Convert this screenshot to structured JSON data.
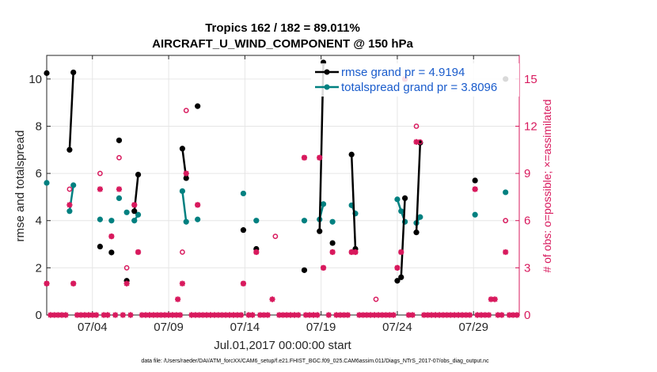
{
  "chart_data": {
    "type": "line",
    "title_line1": "Tropics 162 / 182 = 89.011%",
    "title_line2": "AIRCRAFT_U_WIND_COMPONENT @ 150 hPa",
    "xlabel": "Jul.01,2017 00:00:00 start",
    "ylabel_left": "rmse and totalspread",
    "ylabel_right": "# of obs: o=possible; ×=assimilated",
    "footer": "data file: /Users/raeder/DAI/ATM_forcXX/CAM6_setup/f.e21.FHIST_BGC.f09_025.CAM6assim.011/Diags_NTrS_2017-07/obs_diag_output.nc",
    "xlim": [
      1,
      32
    ],
    "ylim_left": [
      0,
      11
    ],
    "ylim_right": [
      0,
      16.5
    ],
    "x_ticks": [
      4,
      9,
      14,
      19,
      24,
      29
    ],
    "x_tick_labels": [
      "07/04",
      "07/09",
      "07/14",
      "07/19",
      "07/24",
      "07/29"
    ],
    "y_ticks_left": [
      0,
      2,
      4,
      6,
      8,
      10
    ],
    "y_tick_labels_left": [
      "0",
      "2",
      "4",
      "6",
      "8",
      "10"
    ],
    "y_ticks_right": [
      0,
      3,
      6,
      9,
      12,
      15
    ],
    "y_tick_labels_right": [
      "0",
      "3",
      "6",
      "9",
      "12",
      "15"
    ],
    "colors": {
      "rmse": "#000000",
      "spread": "#008080",
      "obs": "#d8195d",
      "grid": "#e6e6e6"
    },
    "legend": {
      "placement": "top-right",
      "rmse": "rmse grand pr = 4.9194",
      "spread": "totalspread grand pr = 3.8096"
    },
    "rmse": [
      [
        [
          1.0,
          10.25
        ]
      ],
      [
        [
          2.5,
          7.0
        ],
        [
          2.75,
          10.28
        ]
      ],
      [
        [
          4.5,
          2.9
        ]
      ],
      [
        [
          5.25,
          2.65
        ]
      ],
      [
        [
          5.75,
          7.4
        ]
      ],
      [
        [
          6.25,
          1.45
        ]
      ],
      [
        [
          6.75,
          4.4
        ],
        [
          7.0,
          5.95
        ]
      ],
      [
        [
          9.9,
          7.05
        ],
        [
          10.15,
          5.8
        ]
      ],
      [
        [
          10.9,
          8.85
        ]
      ],
      [
        [
          13.9,
          3.6
        ]
      ],
      [
        [
          14.75,
          2.8
        ]
      ],
      [
        [
          17.9,
          1.9
        ]
      ],
      [
        [
          18.9,
          3.55
        ],
        [
          19.15,
          10.7
        ]
      ],
      [
        [
          19.75,
          3.05
        ]
      ],
      [
        [
          21.0,
          6.8
        ],
        [
          21.25,
          2.8
        ]
      ],
      [
        [
          24.0,
          1.45
        ],
        [
          24.25,
          1.6
        ],
        [
          24.5,
          4.95
        ]
      ],
      [
        [
          25.25,
          3.5
        ],
        [
          25.5,
          7.3
        ]
      ],
      [
        [
          29.1,
          5.7
        ]
      ],
      [
        [
          31.1,
          10.0
        ]
      ]
    ],
    "spread": [
      [
        [
          1.0,
          5.6
        ]
      ],
      [
        [
          2.5,
          4.4
        ],
        [
          2.75,
          5.5
        ]
      ],
      [
        [
          4.5,
          4.05
        ]
      ],
      [
        [
          5.25,
          4.0
        ]
      ],
      [
        [
          5.75,
          4.95
        ]
      ],
      [
        [
          6.25,
          4.35
        ]
      ],
      [
        [
          6.75,
          4.0
        ],
        [
          7.0,
          4.25
        ]
      ],
      [
        [
          9.9,
          5.25
        ],
        [
          10.15,
          3.95
        ]
      ],
      [
        [
          10.9,
          4.05
        ]
      ],
      [
        [
          13.9,
          5.15
        ]
      ],
      [
        [
          14.75,
          4.0
        ]
      ],
      [
        [
          17.9,
          4.0
        ]
      ],
      [
        [
          18.9,
          4.05
        ],
        [
          19.15,
          4.7
        ]
      ],
      [
        [
          19.75,
          3.95
        ]
      ],
      [
        [
          21.0,
          4.65
        ],
        [
          21.25,
          4.3
        ]
      ],
      [
        [
          24.0,
          4.9
        ],
        [
          24.25,
          4.4
        ],
        [
          24.5,
          3.95
        ]
      ],
      [
        [
          25.25,
          3.9
        ],
        [
          25.5,
          4.15
        ]
      ],
      [
        [
          29.1,
          4.25
        ]
      ],
      [
        [
          31.1,
          5.2
        ]
      ]
    ],
    "obs_possible": [
      [
        1.0,
        2
      ],
      [
        2.5,
        8
      ],
      [
        2.75,
        2
      ],
      [
        4.5,
        9
      ],
      [
        5.25,
        5
      ],
      [
        5.75,
        10
      ],
      [
        6.25,
        3
      ],
      [
        6.75,
        7
      ],
      [
        7.0,
        4
      ],
      [
        9.9,
        4
      ],
      [
        10.15,
        13
      ],
      [
        10.9,
        7
      ],
      [
        13.9,
        2
      ],
      [
        14.75,
        4
      ],
      [
        16.0,
        5
      ],
      [
        17.9,
        10
      ],
      [
        18.9,
        10
      ],
      [
        19.15,
        3
      ],
      [
        19.75,
        4
      ],
      [
        21.0,
        4
      ],
      [
        21.25,
        4
      ],
      [
        22.6,
        1
      ],
      [
        24.0,
        3
      ],
      [
        24.25,
        4
      ],
      [
        24.5,
        15
      ],
      [
        25.25,
        12
      ],
      [
        25.5,
        11
      ],
      [
        29.1,
        8
      ],
      [
        31.1,
        6
      ]
    ],
    "obs_assimilated": [
      [
        1.0,
        2
      ],
      [
        2.5,
        7
      ],
      [
        2.75,
        2
      ],
      [
        4.5,
        8
      ],
      [
        5.25,
        5
      ],
      [
        5.75,
        8
      ],
      [
        6.25,
        2
      ],
      [
        6.75,
        7
      ],
      [
        7.0,
        4
      ],
      [
        9.6,
        1
      ],
      [
        9.9,
        2
      ],
      [
        10.15,
        9
      ],
      [
        10.9,
        7
      ],
      [
        13.9,
        2
      ],
      [
        14.75,
        4
      ],
      [
        15.8,
        1
      ],
      [
        17.9,
        10
      ],
      [
        18.9,
        10
      ],
      [
        19.15,
        3
      ],
      [
        19.75,
        4
      ],
      [
        21.0,
        4
      ],
      [
        21.25,
        4
      ],
      [
        24.0,
        3
      ],
      [
        24.25,
        4
      ],
      [
        24.5,
        15
      ],
      [
        25.25,
        11
      ],
      [
        29.1,
        8
      ],
      [
        30.15,
        1
      ],
      [
        30.4,
        1
      ],
      [
        31.1,
        4
      ]
    ],
    "obs_zero_x": [
      1.25,
      1.5,
      1.75,
      2.0,
      2.25,
      3.0,
      3.25,
      3.5,
      3.75,
      4.0,
      4.25,
      4.75,
      5.0,
      5.5,
      6.0,
      6.5,
      7.25,
      7.5,
      7.75,
      8.0,
      8.25,
      8.5,
      8.75,
      9.0,
      9.25,
      9.5,
      9.75,
      10.5,
      10.75,
      11.0,
      11.25,
      11.5,
      11.75,
      12.0,
      12.25,
      12.5,
      12.75,
      13.0,
      13.25,
      13.5,
      13.75,
      14.25,
      14.5,
      15.0,
      15.25,
      15.5,
      16.25,
      16.5,
      16.75,
      17.0,
      17.25,
      17.5,
      18.0,
      18.25,
      18.5,
      18.75,
      19.5,
      20.0,
      20.25,
      20.5,
      20.75,
      21.5,
      21.75,
      22.0,
      22.25,
      22.5,
      22.75,
      23.0,
      23.25,
      23.5,
      23.75,
      24.75,
      25.0,
      25.75,
      26.0,
      26.25,
      26.5,
      26.75,
      27.0,
      27.25,
      27.5,
      27.75,
      28.0,
      28.25,
      28.5,
      28.75,
      29.25,
      29.5,
      29.75,
      30.0,
      30.6,
      30.85,
      31.35,
      31.6,
      31.85
    ]
  }
}
